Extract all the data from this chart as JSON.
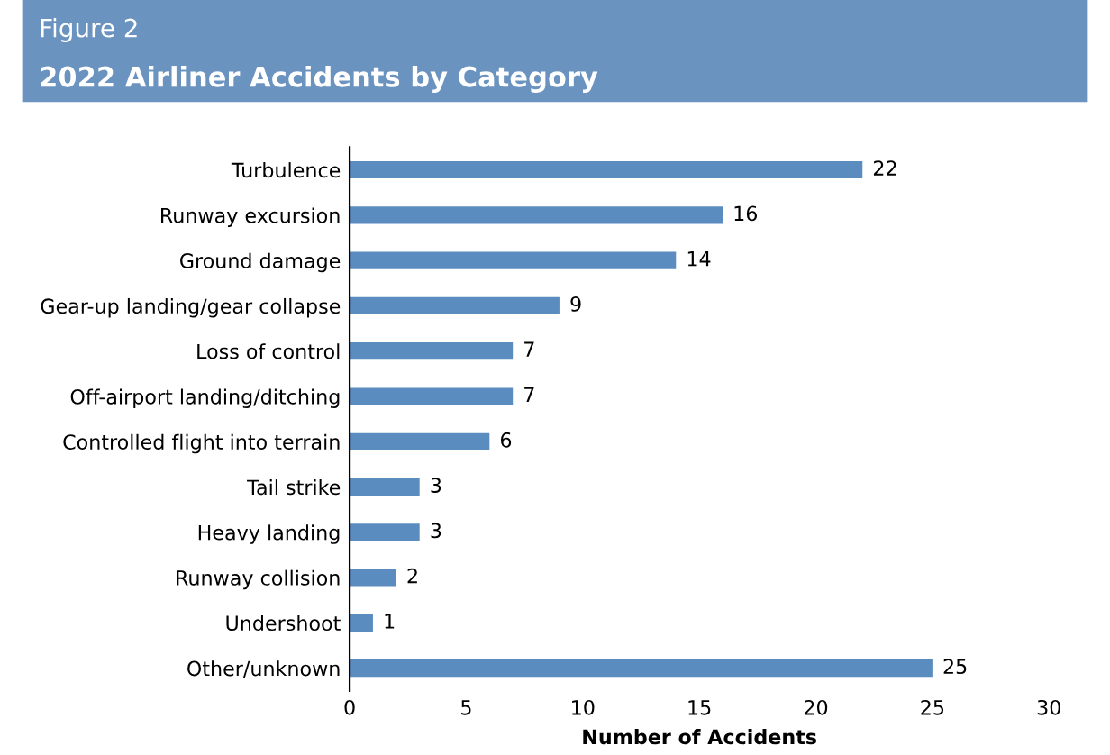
{
  "chart_data": {
    "type": "bar",
    "orientation": "horizontal",
    "title": "2022 Airliner Accidents by Category",
    "annotations": [
      "Figure 2"
    ],
    "categories": [
      "Turbulence",
      "Runway excursion",
      "Ground damage",
      "Gear-up landing/gear collapse",
      "Loss of control",
      "Off-airport landing/ditching",
      "Controlled flight into terrain",
      "Tail strike",
      "Heavy landing",
      "Runway collision",
      "Undershoot",
      "Other/unknown"
    ],
    "values": [
      22,
      16,
      14,
      9,
      7,
      7,
      6,
      3,
      3,
      2,
      1,
      25
    ],
    "color": "#5b8cbf",
    "xlim": [
      0,
      30
    ],
    "xticks": [
      0,
      5,
      10,
      15,
      20,
      25,
      30
    ],
    "xlabel": "Number of Accidents",
    "data_labels": true,
    "grid": false,
    "legend": false
  }
}
